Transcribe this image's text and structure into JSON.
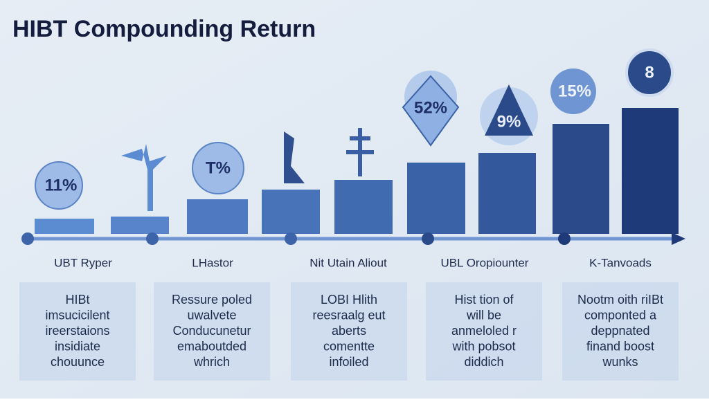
{
  "title": "HIBT Compounding Return",
  "badges": [
    "11%",
    "T%",
    "52%",
    "9%",
    "15%",
    "8"
  ],
  "stages": [
    "UBT Ryper",
    "LHastor",
    "Nit Utain Aliout",
    "UBL Oropiounter",
    "K-Tanvoads"
  ],
  "cards": [
    [
      "HIBt",
      "imsucicilent",
      "ireerstaions",
      "insidiate",
      "chouunce"
    ],
    [
      "Ressure poled",
      "uwalvete",
      "Conducunetur",
      "emaboutded",
      "whrich"
    ],
    [
      "LOBI Hlith",
      "reesraalg eut",
      "aberts",
      "comentte",
      "infoiled"
    ],
    [
      "Hist tion of",
      "will be",
      "anmeloled r",
      "with pobsot",
      "diddich"
    ],
    [
      "Nootm oith riIBt",
      "componted a",
      "deppnated",
      "finand boost",
      "wunks"
    ]
  ]
}
